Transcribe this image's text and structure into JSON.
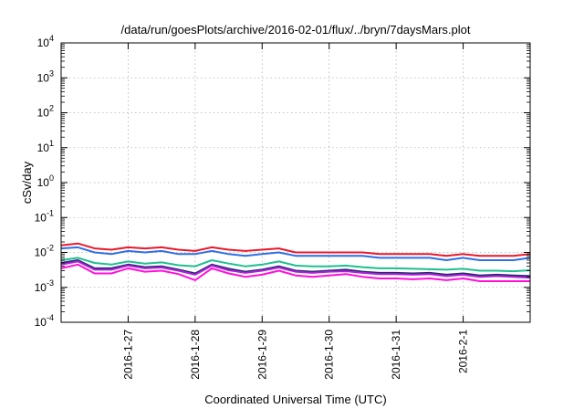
{
  "chart_data": {
    "type": "line",
    "title": "/data/run/goesPlots/archive/2016-02-01/flux/../bryn/7daysMars.plot",
    "xlabel": "Coordinated Universal Time (UTC)",
    "ylabel": "cSv/day",
    "yscale": "log",
    "ylim": [
      0.0001,
      10000
    ],
    "y_ticks": [
      {
        "base": "10",
        "exp": "-4"
      },
      {
        "base": "10",
        "exp": "-3"
      },
      {
        "base": "10",
        "exp": "-2"
      },
      {
        "base": "10",
        "exp": "-1"
      },
      {
        "base": "10",
        "exp": "0"
      },
      {
        "base": "10",
        "exp": "1"
      },
      {
        "base": "10",
        "exp": "2"
      },
      {
        "base": "10",
        "exp": "3"
      },
      {
        "base": "10",
        "exp": "4"
      }
    ],
    "xlim": [
      "2016-01-26",
      "2016-02-02"
    ],
    "x_tick_labels": [
      "2016-1-27",
      "2016-1-28",
      "2016-1-29",
      "2016-1-30",
      "2016-1-31",
      "2016-2-1"
    ],
    "x_tick_dates": [
      "2016-01-27",
      "2016-01-28",
      "2016-01-29",
      "2016-01-30",
      "2016-01-31",
      "2016-02-01"
    ],
    "grid": true,
    "legend": "none",
    "x": [
      "2016-01-26T00:00",
      "2016-01-26T06:00",
      "2016-01-26T12:00",
      "2016-01-26T18:00",
      "2016-01-27T00:00",
      "2016-01-27T06:00",
      "2016-01-27T12:00",
      "2016-01-27T18:00",
      "2016-01-28T00:00",
      "2016-01-28T06:00",
      "2016-01-28T12:00",
      "2016-01-28T18:00",
      "2016-01-29T00:00",
      "2016-01-29T06:00",
      "2016-01-29T12:00",
      "2016-01-29T18:00",
      "2016-01-30T00:00",
      "2016-01-30T06:00",
      "2016-01-30T12:00",
      "2016-01-30T18:00",
      "2016-01-31T00:00",
      "2016-01-31T06:00",
      "2016-01-31T12:00",
      "2016-01-31T18:00",
      "2016-02-01T00:00",
      "2016-02-01T06:00",
      "2016-02-01T12:00",
      "2016-02-01T18:00",
      "2016-02-02T00:00"
    ],
    "series": [
      {
        "color": "#e8192c",
        "values": [
          0.016,
          0.018,
          0.013,
          0.012,
          0.014,
          0.013,
          0.014,
          0.012,
          0.011,
          0.014,
          0.012,
          0.011,
          0.012,
          0.013,
          0.01,
          0.01,
          0.01,
          0.01,
          0.01,
          0.009,
          0.009,
          0.009,
          0.009,
          0.008,
          0.009,
          0.008,
          0.008,
          0.008,
          0.009
        ]
      },
      {
        "color": "#2f6fe4",
        "values": [
          0.013,
          0.014,
          0.01,
          0.009,
          0.011,
          0.01,
          0.011,
          0.009,
          0.009,
          0.011,
          0.009,
          0.008,
          0.009,
          0.01,
          0.008,
          0.008,
          0.008,
          0.008,
          0.008,
          0.007,
          0.007,
          0.007,
          0.007,
          0.006,
          0.007,
          0.006,
          0.006,
          0.006,
          0.007
        ]
      },
      {
        "color": "#1fbf8f",
        "values": [
          0.006,
          0.007,
          0.005,
          0.0045,
          0.0055,
          0.0048,
          0.0052,
          0.0043,
          0.004,
          0.006,
          0.0048,
          0.004,
          0.0045,
          0.0055,
          0.0042,
          0.004,
          0.004,
          0.0042,
          0.0038,
          0.0035,
          0.0035,
          0.0034,
          0.0033,
          0.0032,
          0.0034,
          0.003,
          0.003,
          0.0029,
          0.0031
        ]
      },
      {
        "color": "#222a6e",
        "values": [
          0.005,
          0.006,
          0.0035,
          0.0035,
          0.0045,
          0.0038,
          0.004,
          0.0032,
          0.0025,
          0.0045,
          0.0034,
          0.0028,
          0.0032,
          0.004,
          0.003,
          0.0028,
          0.003,
          0.0032,
          0.0028,
          0.0026,
          0.0026,
          0.0025,
          0.0026,
          0.0023,
          0.0025,
          0.0022,
          0.0023,
          0.0022,
          0.0021
        ]
      },
      {
        "color": "#b020d8",
        "values": [
          0.0045,
          0.0055,
          0.0032,
          0.0032,
          0.0042,
          0.0035,
          0.0037,
          0.003,
          0.0023,
          0.0042,
          0.0031,
          0.0026,
          0.003,
          0.0037,
          0.0028,
          0.0026,
          0.0028,
          0.0029,
          0.0026,
          0.0024,
          0.0024,
          0.0023,
          0.0024,
          0.0021,
          0.0023,
          0.002,
          0.0021,
          0.002,
          0.0019
        ]
      },
      {
        "color": "#ff10d8",
        "values": [
          0.0035,
          0.0045,
          0.0025,
          0.0025,
          0.0035,
          0.0028,
          0.003,
          0.0024,
          0.0016,
          0.0035,
          0.0025,
          0.002,
          0.0023,
          0.003,
          0.0022,
          0.002,
          0.0022,
          0.0024,
          0.002,
          0.0018,
          0.0018,
          0.0017,
          0.0018,
          0.0016,
          0.0018,
          0.0015,
          0.0015,
          0.0015,
          0.0015
        ]
      }
    ]
  }
}
